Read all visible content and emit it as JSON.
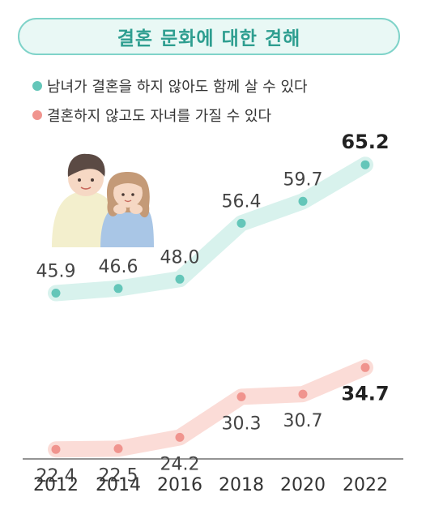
{
  "title": "결혼 문화에 대한 견해",
  "colors": {
    "teal": "#64c6b9",
    "teal_band": "#d8f2ed",
    "pink": "#f0948e",
    "pink_band": "#fbdcd7"
  },
  "chart_data": {
    "type": "line",
    "title": "결혼 문화에 대한 견해",
    "x": [
      "2012",
      "2014",
      "2016",
      "2018",
      "2020",
      "2022"
    ],
    "series": [
      {
        "name": "남녀가 결혼을 하지 않아도 함께 살 수 있다",
        "values": [
          45.9,
          46.6,
          48.0,
          56.4,
          59.7,
          65.2
        ],
        "labels": [
          "45.9",
          "46.6",
          "48.0",
          "56.4",
          "59.7",
          "65.2"
        ],
        "color": "#64c6b9"
      },
      {
        "name": "결혼하지 않고도 자녀를 가질 수 있다",
        "values": [
          22.4,
          22.5,
          24.2,
          30.3,
          30.7,
          34.7
        ],
        "labels": [
          "22.4",
          "22.5",
          "24.2",
          "30.3",
          "30.7",
          "34.7"
        ],
        "color": "#f0948e"
      }
    ],
    "grid": false,
    "legend": "top-left"
  }
}
